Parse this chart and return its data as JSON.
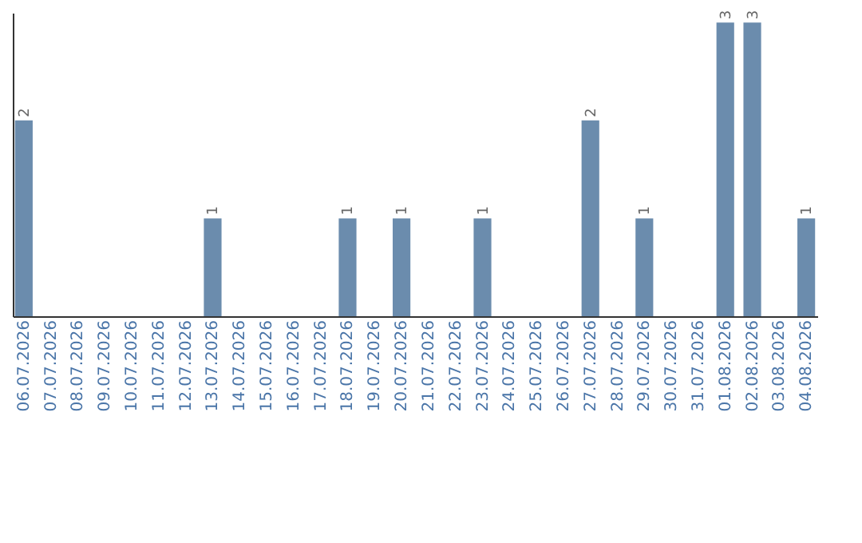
{
  "chart_data": {
    "type": "bar",
    "categories": [
      "06.07.2026",
      "07.07.2026",
      "08.07.2026",
      "09.07.2026",
      "10.07.2026",
      "11.07.2026",
      "12.07.2026",
      "13.07.2026",
      "14.07.2026",
      "15.07.2026",
      "16.07.2026",
      "17.07.2026",
      "18.07.2026",
      "19.07.2026",
      "20.07.2026",
      "21.07.2026",
      "22.07.2026",
      "23.07.2026",
      "24.07.2026",
      "25.07.2026",
      "26.07.2026",
      "27.07.2026",
      "28.07.2026",
      "29.07.2026",
      "30.07.2026",
      "31.07.2026",
      "01.08.2026",
      "02.08.2026",
      "03.08.2026",
      "04.08.2026"
    ],
    "values": [
      2,
      null,
      null,
      null,
      null,
      null,
      null,
      1,
      null,
      null,
      null,
      null,
      1,
      null,
      1,
      null,
      null,
      1,
      null,
      null,
      null,
      2,
      null,
      1,
      null,
      null,
      3,
      3,
      null,
      1
    ],
    "color": "#6b8cad",
    "ylim": [
      0,
      3.1
    ],
    "data_labels": true,
    "tick_labels": "x",
    "grid": false
  }
}
